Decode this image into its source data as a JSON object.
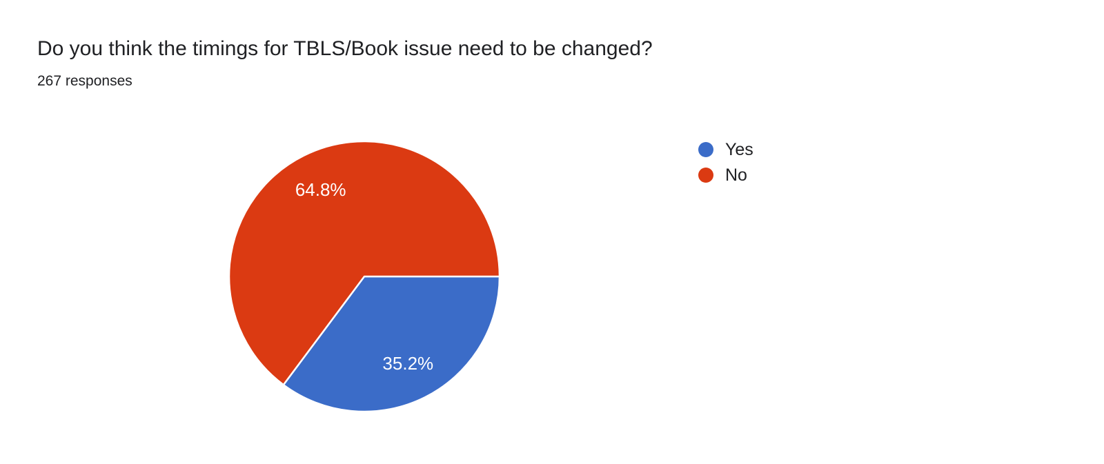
{
  "header": {
    "title": "Do you think the timings for TBLS/Book issue need to be changed?",
    "subtitle": "267 responses"
  },
  "chart_data": {
    "type": "pie",
    "title": "Do you think the timings for TBLS/Book issue need to be changed?",
    "subtitle": "267 responses",
    "labels": [
      "Yes",
      "No"
    ],
    "values": [
      35.2,
      64.8
    ],
    "value_labels": [
      "35.2%",
      "64.8%"
    ],
    "colors": [
      "#3b6cc8",
      "#db3a12"
    ],
    "slice_label_color": "#ffffff",
    "slice_border_color": "#ffffff",
    "start_angle_deg": 0,
    "direction": "clockwise",
    "legend_position": "right",
    "text_color": "#202124",
    "background": "#ffffff"
  }
}
